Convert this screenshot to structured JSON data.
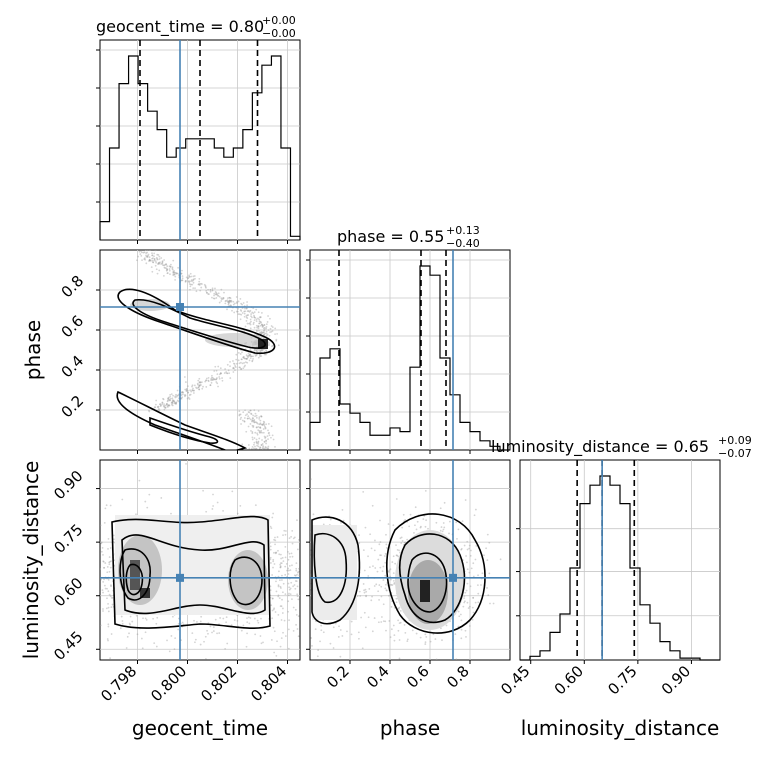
{
  "chart_data": {
    "type": "corner",
    "parameters": [
      {
        "name": "geocent_time",
        "label": "geocent_time",
        "title": "geocent_time = 0.80",
        "median": "0.80",
        "upper": "+0.00",
        "lower": "−0.00",
        "range": [
          0.7965,
          0.8045
        ],
        "ticks": [
          "0.798",
          "0.800",
          "0.802",
          "0.804"
        ],
        "tick_values": [
          0.798,
          0.8,
          0.802,
          0.804
        ],
        "truth": 0.7997,
        "quantiles": [
          0.7981,
          0.8005,
          0.8028
        ]
      },
      {
        "name": "phase",
        "label": "phase",
        "title": "phase = 0.55",
        "median": "0.55",
        "upper": "+0.13",
        "lower": "−0.40",
        "range": [
          0.0,
          1.0
        ],
        "ticks": [
          "0.2",
          "0.4",
          "0.6",
          "0.8"
        ],
        "tick_values": [
          0.2,
          0.4,
          0.6,
          0.8
        ],
        "truth": 0.715,
        "quantiles": [
          0.145,
          0.555,
          0.68
        ]
      },
      {
        "name": "luminosity_distance",
        "label": "luminosity_distance",
        "title": "luminosity_distance = 0.65",
        "median": "0.65",
        "upper": "+0.09",
        "lower": "−0.07",
        "range": [
          0.42,
          0.98
        ],
        "ticks": [
          "0.45",
          "0.60",
          "0.75",
          "0.90"
        ],
        "tick_values": [
          0.45,
          0.6,
          0.75,
          0.9
        ],
        "truth": 0.65,
        "quantiles": [
          0.58,
          0.65,
          0.74
        ]
      }
    ],
    "histograms": {
      "geocent_time": [
        0.1,
        0.5,
        0.85,
        1.0,
        0.85,
        0.7,
        0.6,
        0.45,
        0.5,
        0.55,
        0.55,
        0.55,
        0.5,
        0.45,
        0.5,
        0.6,
        0.8,
        0.95,
        1.0,
        0.5,
        0.02
      ],
      "phase": [
        0.15,
        0.5,
        0.55,
        0.25,
        0.2,
        0.15,
        0.08,
        0.08,
        0.12,
        0.1,
        0.45,
        1.0,
        0.95,
        0.5,
        0.3,
        0.15,
        0.1,
        0.05,
        0.02,
        0.0
      ],
      "luminosity_distance": [
        0.0,
        0.02,
        0.05,
        0.15,
        0.25,
        0.5,
        0.85,
        0.95,
        1.0,
        0.95,
        0.85,
        0.5,
        0.3,
        0.2,
        0.1,
        0.05,
        0.01,
        0.01,
        0.0,
        0.0
      ]
    },
    "grid": true,
    "truth_color": "#4682b4",
    "contour_color": "#000000",
    "scatter_color": "#a0a0a0"
  }
}
